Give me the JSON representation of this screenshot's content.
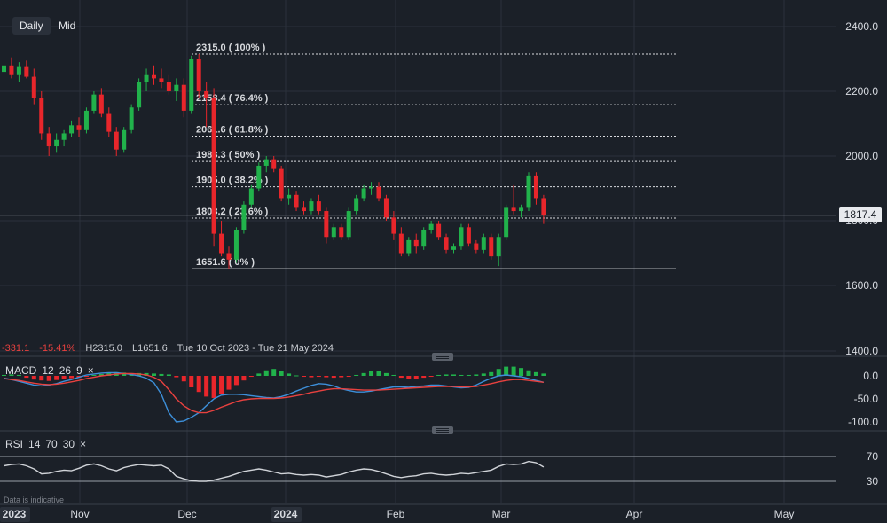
{
  "toolbar": {
    "interval_label": "Daily",
    "price_mode_label": "Mid"
  },
  "colors": {
    "background": "#1b2028",
    "up": "#21b24b",
    "down": "#e8262b",
    "macd_line": "#3d8fd9",
    "signal_line": "#e8413f",
    "rsi_line": "#d0d3d8",
    "grid": "#2b313b"
  },
  "summary": {
    "change": "-331.1",
    "change_pct": "-15.41%",
    "high_label": "H",
    "high_value": "2315.0",
    "low_label": "L",
    "low_value": "1651.6",
    "date_range": "Tue 10 Oct 2023 - Tue 21 May 2024"
  },
  "current_price": "1817.4",
  "footnote": "Data is indicative",
  "macd_panel": {
    "name": "MACD",
    "params": [
      "12",
      "26",
      "9"
    ],
    "close_icon": "×"
  },
  "rsi_panel": {
    "name": "RSI",
    "params": [
      "14",
      "70",
      "30"
    ],
    "close_icon": "×"
  },
  "chart_data": {
    "type": "candlestick",
    "price_axis": {
      "ticks": [
        "2400.0",
        "2200.0",
        "2000.0",
        "1800.0",
        "1600.0",
        "1400.0"
      ],
      "range": [
        1400,
        2400
      ]
    },
    "macd_axis": {
      "ticks": [
        "0.0",
        "-50.0",
        "-100.0"
      ],
      "range": [
        -100,
        0
      ]
    },
    "rsi_axis": {
      "ticks": [
        "70",
        "30"
      ],
      "levels": [
        70,
        30
      ]
    },
    "time_axis": {
      "ticks": [
        "2023",
        "Nov",
        "Dec",
        "2024",
        "Feb",
        "Mar",
        "Apr",
        "May"
      ]
    },
    "fibonacci_levels": [
      {
        "label": "2315.0 ( 100% )",
        "value": 2315.0
      },
      {
        "label": "2158.4 ( 76.4% )",
        "value": 2158.4
      },
      {
        "label": "2061.6 ( 61.8% )",
        "value": 2061.6
      },
      {
        "label": "1983.3 ( 50% )",
        "value": 1983.3
      },
      {
        "label": "1905.0 ( 38.2% )",
        "value": 1905.0
      },
      {
        "label": "1808.2 ( 23.6% )",
        "value": 1808.2
      },
      {
        "label": "1651.6 ( 0% )",
        "value": 1651.6
      }
    ],
    "candles": [
      [
        2260,
        2285,
        2220,
        2280
      ],
      [
        2280,
        2305,
        2240,
        2250
      ],
      [
        2250,
        2290,
        2230,
        2275
      ],
      [
        2275,
        2295,
        2240,
        2245
      ],
      [
        2245,
        2270,
        2160,
        2180
      ],
      [
        2180,
        2200,
        2050,
        2070
      ],
      [
        2070,
        2090,
        2000,
        2030
      ],
      [
        2030,
        2070,
        2010,
        2050
      ],
      [
        2050,
        2080,
        2030,
        2070
      ],
      [
        2070,
        2110,
        2060,
        2095
      ],
      [
        2095,
        2120,
        2060,
        2080
      ],
      [
        2080,
        2150,
        2070,
        2140
      ],
      [
        2140,
        2200,
        2130,
        2190
      ],
      [
        2190,
        2210,
        2120,
        2130
      ],
      [
        2130,
        2150,
        2060,
        2075
      ],
      [
        2075,
        2090,
        2000,
        2020
      ],
      [
        2020,
        2090,
        2010,
        2080
      ],
      [
        2080,
        2160,
        2070,
        2150
      ],
      [
        2150,
        2240,
        2140,
        2230
      ],
      [
        2230,
        2270,
        2200,
        2250
      ],
      [
        2250,
        2280,
        2220,
        2240
      ],
      [
        2240,
        2270,
        2210,
        2230
      ],
      [
        2230,
        2250,
        2190,
        2200
      ],
      [
        2200,
        2240,
        2170,
        2220
      ],
      [
        2220,
        2240,
        2120,
        2140
      ],
      [
        2140,
        2310,
        2130,
        2300
      ],
      [
        2300,
        2315,
        2180,
        2200
      ],
      [
        2200,
        2230,
        2090,
        2180
      ],
      [
        2180,
        2210,
        1720,
        1760
      ],
      [
        1760,
        1800,
        1690,
        1700
      ],
      [
        1700,
        1720,
        1651.6,
        1680
      ],
      [
        1680,
        1780,
        1670,
        1770
      ],
      [
        1770,
        1860,
        1760,
        1850
      ],
      [
        1850,
        1910,
        1840,
        1900
      ],
      [
        1900,
        1980,
        1890,
        1970
      ],
      [
        1970,
        2000,
        1950,
        1990
      ],
      [
        1990,
        2000,
        1950,
        1960
      ],
      [
        1960,
        1970,
        1860,
        1870
      ],
      [
        1870,
        1900,
        1850,
        1880
      ],
      [
        1880,
        1890,
        1830,
        1840
      ],
      [
        1840,
        1860,
        1820,
        1830
      ],
      [
        1830,
        1870,
        1820,
        1860
      ],
      [
        1860,
        1880,
        1820,
        1830
      ],
      [
        1830,
        1840,
        1730,
        1750
      ],
      [
        1750,
        1790,
        1740,
        1780
      ],
      [
        1780,
        1790,
        1740,
        1750
      ],
      [
        1750,
        1840,
        1740,
        1830
      ],
      [
        1830,
        1880,
        1820,
        1870
      ],
      [
        1870,
        1910,
        1860,
        1900
      ],
      [
        1900,
        1920,
        1880,
        1905
      ],
      [
        1905,
        1920,
        1860,
        1870
      ],
      [
        1870,
        1880,
        1800,
        1810
      ],
      [
        1810,
        1830,
        1740,
        1760
      ],
      [
        1760,
        1780,
        1690,
        1700
      ],
      [
        1700,
        1750,
        1690,
        1740
      ],
      [
        1740,
        1760,
        1700,
        1720
      ],
      [
        1720,
        1780,
        1710,
        1770
      ],
      [
        1770,
        1800,
        1760,
        1790
      ],
      [
        1790,
        1800,
        1740,
        1750
      ],
      [
        1750,
        1760,
        1700,
        1710
      ],
      [
        1710,
        1730,
        1700,
        1720
      ],
      [
        1720,
        1790,
        1710,
        1780
      ],
      [
        1780,
        1790,
        1720,
        1730
      ],
      [
        1730,
        1740,
        1700,
        1710
      ],
      [
        1710,
        1760,
        1700,
        1750
      ],
      [
        1750,
        1760,
        1680,
        1690
      ],
      [
        1690,
        1760,
        1660,
        1750
      ],
      [
        1750,
        1850,
        1740,
        1840
      ],
      [
        1840,
        1910,
        1820,
        1830
      ],
      [
        1830,
        1850,
        1810,
        1840
      ],
      [
        1840,
        1950,
        1830,
        1940
      ],
      [
        1940,
        1950,
        1850,
        1870
      ],
      [
        1870,
        1880,
        1790,
        1817.4
      ]
    ],
    "macd_histogram": [
      2,
      3,
      2,
      -4,
      -8,
      -10,
      -11,
      -9,
      -7,
      -5,
      -4,
      -2,
      2,
      4,
      6,
      8,
      7,
      6,
      6,
      6,
      5,
      4,
      3,
      -3,
      -12,
      -25,
      -35,
      -45,
      -48,
      -40,
      -30,
      -20,
      -10,
      -2,
      5,
      12,
      15,
      10,
      5,
      1,
      -2,
      -3,
      -2,
      -3,
      -4,
      -3,
      -2,
      2,
      6,
      10,
      10,
      6,
      2,
      -4,
      -7,
      -6,
      -4,
      -2,
      2,
      3,
      3,
      2,
      2,
      3,
      5,
      8,
      15,
      20,
      20,
      17,
      12,
      8,
      5
    ],
    "macd_line": [
      -5,
      -8,
      -12,
      -16,
      -20,
      -22,
      -20,
      -17,
      -12,
      -8,
      -3,
      2,
      4,
      6,
      7,
      7,
      5,
      3,
      0,
      -5,
      -15,
      -40,
      -80,
      -100,
      -98,
      -90,
      -80,
      -65,
      -50,
      -42,
      -40,
      -40,
      -41,
      -43,
      -45,
      -47,
      -48,
      -45,
      -40,
      -33,
      -27,
      -21,
      -17,
      -18,
      -22,
      -28,
      -32,
      -35,
      -35,
      -33,
      -30,
      -27,
      -24,
      -24,
      -25,
      -23,
      -22,
      -20,
      -20,
      -22,
      -24,
      -26,
      -25,
      -20,
      -12,
      -5,
      0,
      2,
      0,
      -2,
      -6,
      -10,
      -14
    ],
    "signal_line": [
      -6,
      -8,
      -10,
      -13,
      -16,
      -18,
      -19,
      -18,
      -16,
      -13,
      -10,
      -6,
      -3,
      0,
      2,
      4,
      5,
      5,
      4,
      2,
      -3,
      -12,
      -30,
      -50,
      -65,
      -75,
      -80,
      -80,
      -75,
      -68,
      -62,
      -56,
      -52,
      -50,
      -49,
      -49,
      -49,
      -48,
      -46,
      -43,
      -40,
      -36,
      -33,
      -30,
      -28,
      -28,
      -29,
      -30,
      -31,
      -31,
      -31,
      -30,
      -29,
      -28,
      -27,
      -26,
      -25,
      -24,
      -23,
      -23,
      -23,
      -24,
      -24,
      -23,
      -20,
      -17,
      -13,
      -10,
      -8,
      -8,
      -10,
      -12,
      -14
    ],
    "rsi_values": [
      55,
      57,
      58,
      55,
      50,
      42,
      43,
      46,
      48,
      47,
      51,
      56,
      58,
      55,
      50,
      47,
      52,
      55,
      57,
      56,
      55,
      56,
      50,
      38,
      34,
      31,
      30,
      30,
      32,
      35,
      38,
      42,
      46,
      48,
      50,
      48,
      45,
      42,
      43,
      41,
      40,
      41,
      40,
      37,
      39,
      41,
      45,
      48,
      50,
      49,
      46,
      42,
      38,
      36,
      38,
      39,
      42,
      43,
      41,
      40,
      41,
      43,
      42,
      44,
      46,
      48,
      54,
      58,
      57,
      58,
      62,
      60,
      53
    ]
  }
}
